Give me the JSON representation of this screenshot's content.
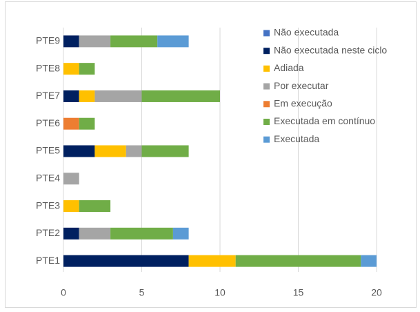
{
  "chart_data": {
    "type": "stacked-barh",
    "categories": [
      "PTE1",
      "PTE2",
      "PTE3",
      "PTE4",
      "PTE5",
      "PTE6",
      "PTE7",
      "PTE8",
      "PTE9"
    ],
    "series": [
      {
        "name": "Não executada",
        "color": "#4472c4",
        "values": [
          0,
          0,
          0,
          0,
          0,
          0,
          0,
          0,
          0
        ]
      },
      {
        "name": "Não executada neste ciclo",
        "color": "#002060",
        "values": [
          8,
          1,
          0,
          0,
          2,
          0,
          1,
          0,
          1
        ]
      },
      {
        "name": "Adiada",
        "color": "#ffc000",
        "values": [
          3,
          0,
          1,
          0,
          2,
          0,
          1,
          1,
          0
        ]
      },
      {
        "name": "Por executar",
        "color": "#a5a5a5",
        "values": [
          0,
          2,
          0,
          1,
          1,
          0,
          3,
          0,
          2
        ]
      },
      {
        "name": "Em execução",
        "color": "#ed7d31",
        "values": [
          0,
          0,
          0,
          0,
          0,
          1,
          0,
          0,
          0
        ]
      },
      {
        "name": "Executada em contínuo",
        "color": "#70ad47",
        "values": [
          8,
          4,
          2,
          0,
          3,
          1,
          5,
          1,
          3
        ]
      },
      {
        "name": "Executada",
        "color": "#5b9bd5",
        "values": [
          1,
          1,
          0,
          0,
          0,
          0,
          0,
          0,
          2
        ]
      }
    ],
    "xlim": [
      0,
      20
    ],
    "xticks": [
      0,
      5,
      10,
      15,
      20
    ],
    "grid": true,
    "legend": "top-right"
  }
}
